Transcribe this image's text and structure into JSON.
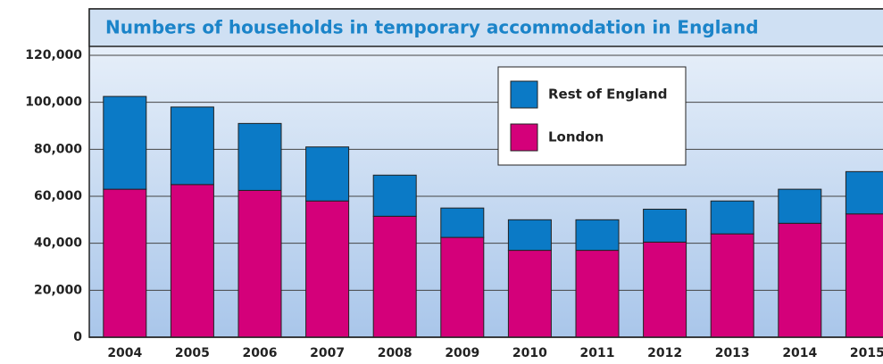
{
  "chart_data": {
    "type": "stacked_bar",
    "title": "Numbers of households in temporary accommodation in England",
    "categories": [
      "2004",
      "2005",
      "2006",
      "2007",
      "2008",
      "2009",
      "2010",
      "2011",
      "2012",
      "2013",
      "2014",
      "2015"
    ],
    "series": [
      {
        "name": "London",
        "color": "#d4007a",
        "values": [
          63000,
          65000,
          62500,
          58000,
          51500,
          42500,
          37000,
          37000,
          40500,
          44000,
          48500,
          52500
        ]
      },
      {
        "name": "Rest of England",
        "color": "#0b7ac6",
        "values": [
          39500,
          33000,
          28500,
          23000,
          17500,
          12500,
          13000,
          13000,
          14000,
          14000,
          14500,
          18000
        ]
      }
    ],
    "ylim": [
      0,
      120000
    ],
    "yticks": [
      0,
      {
        "value": 20000,
        "label": "20,000"
      },
      {
        "value": 40000,
        "label": "40,000"
      },
      {
        "value": 60000,
        "label": "60,000"
      },
      {
        "value": 80000,
        "label": "80,000"
      },
      {
        "value": 100000,
        "label": "100,000"
      },
      {
        "value": 120000,
        "label": "120,000"
      }
    ],
    "grid": true
  }
}
